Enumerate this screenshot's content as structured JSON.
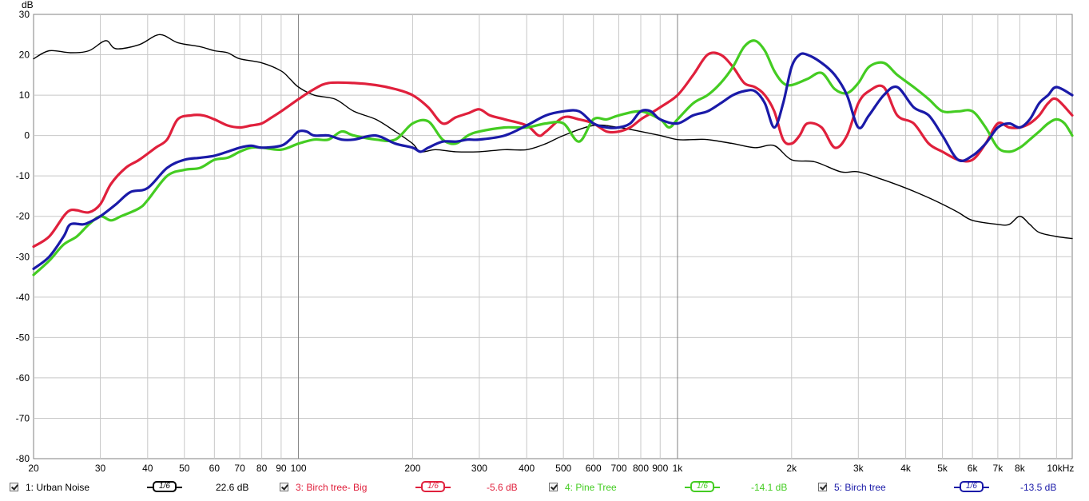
{
  "chart_data": {
    "type": "line",
    "title": "",
    "xlabel": "",
    "ylabel": "dB",
    "x_scale": "log",
    "xlim": [
      20,
      11000
    ],
    "ylim": [
      -80,
      30
    ],
    "yticks": [
      30,
      20,
      10,
      0,
      -10,
      -20,
      -30,
      -40,
      -50,
      -60,
      -70,
      -80
    ],
    "xticks": [
      {
        "v": 20,
        "t": "20"
      },
      {
        "v": 30,
        "t": "30"
      },
      {
        "v": 40,
        "t": "40"
      },
      {
        "v": 50,
        "t": "50"
      },
      {
        "v": 60,
        "t": "60"
      },
      {
        "v": 70,
        "t": "70"
      },
      {
        "v": 80,
        "t": "80"
      },
      {
        "v": 90,
        "t": "90"
      },
      {
        "v": 100,
        "t": "100"
      },
      {
        "v": 200,
        "t": "200"
      },
      {
        "v": 300,
        "t": "300"
      },
      {
        "v": 400,
        "t": "400"
      },
      {
        "v": 500,
        "t": "500"
      },
      {
        "v": 600,
        "t": "600"
      },
      {
        "v": 700,
        "t": "700"
      },
      {
        "v": 800,
        "t": "800"
      },
      {
        "v": 900,
        "t": "900"
      },
      {
        "v": 1000,
        "t": "1k"
      },
      {
        "v": 2000,
        "t": "2k"
      },
      {
        "v": 3000,
        "t": "3k"
      },
      {
        "v": 4000,
        "t": "4k"
      },
      {
        "v": 5000,
        "t": "5k"
      },
      {
        "v": 6000,
        "t": "6k"
      },
      {
        "v": 7000,
        "t": "7k"
      },
      {
        "v": 8000,
        "t": "8k"
      },
      {
        "v": 10000,
        "t": "10kHz"
      }
    ],
    "grid": true,
    "legend_position": "bottom",
    "series": [
      {
        "name": "1: Urban Noise",
        "color": "#000000",
        "smoothing": "1/6",
        "level": "22.6 dB",
        "points": [
          [
            20,
            19
          ],
          [
            22,
            21
          ],
          [
            25,
            20.5
          ],
          [
            28,
            21
          ],
          [
            31,
            23.5
          ],
          [
            33,
            21.5
          ],
          [
            38,
            22.5
          ],
          [
            43,
            25
          ],
          [
            48,
            23
          ],
          [
            55,
            22
          ],
          [
            60,
            21
          ],
          [
            65,
            20.5
          ],
          [
            70,
            19
          ],
          [
            80,
            18
          ],
          [
            90,
            16
          ],
          [
            95,
            14
          ],
          [
            100,
            12
          ],
          [
            110,
            10
          ],
          [
            125,
            9
          ],
          [
            140,
            6
          ],
          [
            160,
            4
          ],
          [
            180,
            1
          ],
          [
            200,
            -2
          ],
          [
            210,
            -4
          ],
          [
            230,
            -3.5
          ],
          [
            260,
            -4
          ],
          [
            300,
            -4
          ],
          [
            350,
            -3.5
          ],
          [
            400,
            -3.5
          ],
          [
            450,
            -2
          ],
          [
            500,
            0
          ],
          [
            600,
            2.5
          ],
          [
            700,
            2
          ],
          [
            800,
            1
          ],
          [
            900,
            0
          ],
          [
            1000,
            -1
          ],
          [
            1100,
            -1
          ],
          [
            1200,
            -1
          ],
          [
            1400,
            -2
          ],
          [
            1600,
            -3
          ],
          [
            1800,
            -2.5
          ],
          [
            2000,
            -6
          ],
          [
            2300,
            -6.5
          ],
          [
            2700,
            -9
          ],
          [
            3000,
            -9
          ],
          [
            3500,
            -11
          ],
          [
            4000,
            -13
          ],
          [
            4500,
            -15
          ],
          [
            5000,
            -17
          ],
          [
            5500,
            -19
          ],
          [
            6000,
            -21
          ],
          [
            7000,
            -22
          ],
          [
            7500,
            -22
          ],
          [
            8000,
            -20
          ],
          [
            8500,
            -22
          ],
          [
            9000,
            -24
          ],
          [
            10000,
            -25
          ],
          [
            11000,
            -25.5
          ]
        ]
      },
      {
        "name": "3: Birch tree- Big",
        "color": "#e0203c",
        "smoothing": "1/6",
        "level": "-5.6 dB",
        "points": [
          [
            20,
            -27.5
          ],
          [
            22,
            -25
          ],
          [
            24,
            -20
          ],
          [
            25,
            -18.5
          ],
          [
            26,
            -18.5
          ],
          [
            28,
            -19
          ],
          [
            30,
            -17
          ],
          [
            32,
            -12
          ],
          [
            35,
            -8
          ],
          [
            38,
            -6
          ],
          [
            42,
            -3
          ],
          [
            45,
            -1
          ],
          [
            48,
            4
          ],
          [
            52,
            5
          ],
          [
            56,
            5
          ],
          [
            60,
            4
          ],
          [
            65,
            2.5
          ],
          [
            70,
            2
          ],
          [
            75,
            2.5
          ],
          [
            80,
            3
          ],
          [
            85,
            4.5
          ],
          [
            90,
            6
          ],
          [
            100,
            9
          ],
          [
            110,
            11.5
          ],
          [
            120,
            13
          ],
          [
            140,
            13
          ],
          [
            160,
            12.5
          ],
          [
            180,
            11.5
          ],
          [
            200,
            10
          ],
          [
            220,
            7
          ],
          [
            240,
            3
          ],
          [
            260,
            4.5
          ],
          [
            280,
            5.5
          ],
          [
            300,
            6.5
          ],
          [
            320,
            5
          ],
          [
            350,
            4
          ],
          [
            400,
            2.5
          ],
          [
            430,
            0
          ],
          [
            450,
            1
          ],
          [
            500,
            4.5
          ],
          [
            550,
            4
          ],
          [
            600,
            3
          ],
          [
            650,
            1
          ],
          [
            700,
            1
          ],
          [
            750,
            2
          ],
          [
            800,
            4
          ],
          [
            850,
            5.5
          ],
          [
            900,
            7
          ],
          [
            1000,
            10
          ],
          [
            1100,
            15
          ],
          [
            1200,
            20
          ],
          [
            1300,
            20
          ],
          [
            1400,
            17
          ],
          [
            1500,
            13
          ],
          [
            1600,
            12
          ],
          [
            1700,
            10
          ],
          [
            1800,
            6
          ],
          [
            1900,
            -1
          ],
          [
            2000,
            -2
          ],
          [
            2100,
            0
          ],
          [
            2200,
            3
          ],
          [
            2400,
            2
          ],
          [
            2600,
            -3
          ],
          [
            2800,
            0
          ],
          [
            3000,
            8
          ],
          [
            3200,
            11
          ],
          [
            3500,
            12
          ],
          [
            3800,
            5
          ],
          [
            4200,
            3
          ],
          [
            4600,
            -2
          ],
          [
            5000,
            -4
          ],
          [
            5500,
            -6
          ],
          [
            6000,
            -6
          ],
          [
            6500,
            -2
          ],
          [
            7000,
            3
          ],
          [
            7500,
            2
          ],
          [
            8000,
            2
          ],
          [
            8500,
            3
          ],
          [
            9000,
            5
          ],
          [
            9500,
            8
          ],
          [
            10000,
            9
          ],
          [
            11000,
            5
          ]
        ]
      },
      {
        "name": "4: Pine Tree",
        "color": "#44cc22",
        "smoothing": "1/6",
        "level": "-14.1 dB",
        "points": [
          [
            20,
            -34.5
          ],
          [
            22,
            -31
          ],
          [
            24,
            -27
          ],
          [
            26,
            -25
          ],
          [
            28,
            -22
          ],
          [
            30,
            -20
          ],
          [
            32,
            -21
          ],
          [
            34,
            -20
          ],
          [
            38,
            -18
          ],
          [
            40,
            -16
          ],
          [
            45,
            -10
          ],
          [
            50,
            -8.5
          ],
          [
            55,
            -8
          ],
          [
            60,
            -6
          ],
          [
            65,
            -5.5
          ],
          [
            70,
            -4
          ],
          [
            75,
            -3
          ],
          [
            80,
            -3
          ],
          [
            90,
            -3.5
          ],
          [
            100,
            -2
          ],
          [
            110,
            -1
          ],
          [
            120,
            -1
          ],
          [
            130,
            1
          ],
          [
            140,
            0
          ],
          [
            160,
            -1
          ],
          [
            180,
            -1
          ],
          [
            200,
            3
          ],
          [
            220,
            3.5
          ],
          [
            240,
            -1
          ],
          [
            260,
            -2
          ],
          [
            280,
            0
          ],
          [
            300,
            1
          ],
          [
            350,
            2
          ],
          [
            400,
            2
          ],
          [
            450,
            3
          ],
          [
            500,
            3
          ],
          [
            550,
            -1.5
          ],
          [
            600,
            4
          ],
          [
            650,
            4
          ],
          [
            700,
            5
          ],
          [
            800,
            6
          ],
          [
            900,
            4
          ],
          [
            950,
            2
          ],
          [
            1000,
            4
          ],
          [
            1100,
            8
          ],
          [
            1200,
            10
          ],
          [
            1300,
            13
          ],
          [
            1400,
            17
          ],
          [
            1500,
            22
          ],
          [
            1600,
            23.5
          ],
          [
            1700,
            21
          ],
          [
            1800,
            16
          ],
          [
            1900,
            13
          ],
          [
            2000,
            12.5
          ],
          [
            2200,
            14
          ],
          [
            2400,
            15.5
          ],
          [
            2600,
            11.5
          ],
          [
            2800,
            10.5
          ],
          [
            3000,
            13
          ],
          [
            3200,
            17
          ],
          [
            3500,
            18
          ],
          [
            3800,
            15
          ],
          [
            4200,
            12
          ],
          [
            4600,
            9
          ],
          [
            5000,
            6
          ],
          [
            5500,
            6
          ],
          [
            6000,
            6
          ],
          [
            6500,
            2
          ],
          [
            7000,
            -3
          ],
          [
            7500,
            -4
          ],
          [
            8000,
            -3
          ],
          [
            8500,
            -1
          ],
          [
            9000,
            1
          ],
          [
            9500,
            3
          ],
          [
            10000,
            4
          ],
          [
            10500,
            3
          ],
          [
            11000,
            0
          ]
        ]
      },
      {
        "name": "5: Birch tree",
        "color": "#1a1aa8",
        "smoothing": "1/6",
        "level": "-13.5 dB",
        "points": [
          [
            20,
            -33
          ],
          [
            22,
            -30
          ],
          [
            24,
            -25
          ],
          [
            25,
            -22
          ],
          [
            27,
            -22
          ],
          [
            28,
            -21.5
          ],
          [
            30,
            -20
          ],
          [
            33,
            -17
          ],
          [
            36,
            -14
          ],
          [
            40,
            -13
          ],
          [
            45,
            -8
          ],
          [
            50,
            -6
          ],
          [
            55,
            -5.5
          ],
          [
            60,
            -5
          ],
          [
            65,
            -4
          ],
          [
            70,
            -3
          ],
          [
            75,
            -2.5
          ],
          [
            80,
            -3
          ],
          [
            90,
            -2.5
          ],
          [
            95,
            -1
          ],
          [
            100,
            1
          ],
          [
            105,
            1
          ],
          [
            110,
            0
          ],
          [
            120,
            0
          ],
          [
            130,
            -1
          ],
          [
            140,
            -1
          ],
          [
            160,
            0
          ],
          [
            180,
            -2
          ],
          [
            200,
            -3
          ],
          [
            210,
            -4
          ],
          [
            220,
            -3
          ],
          [
            240,
            -1.5
          ],
          [
            260,
            -1.5
          ],
          [
            280,
            -1
          ],
          [
            300,
            -1
          ],
          [
            350,
            0
          ],
          [
            400,
            2.5
          ],
          [
            450,
            5
          ],
          [
            500,
            6
          ],
          [
            550,
            6
          ],
          [
            600,
            3
          ],
          [
            650,
            2
          ],
          [
            700,
            2
          ],
          [
            750,
            3
          ],
          [
            800,
            6
          ],
          [
            850,
            6
          ],
          [
            900,
            4
          ],
          [
            1000,
            3
          ],
          [
            1100,
            5
          ],
          [
            1200,
            6
          ],
          [
            1300,
            8
          ],
          [
            1400,
            10
          ],
          [
            1500,
            11
          ],
          [
            1600,
            11
          ],
          [
            1700,
            8
          ],
          [
            1800,
            2
          ],
          [
            1900,
            8
          ],
          [
            2000,
            17
          ],
          [
            2100,
            20
          ],
          [
            2200,
            20
          ],
          [
            2400,
            18
          ],
          [
            2600,
            15
          ],
          [
            2800,
            10
          ],
          [
            3000,
            2
          ],
          [
            3200,
            5
          ],
          [
            3500,
            10
          ],
          [
            3800,
            12
          ],
          [
            4200,
            7
          ],
          [
            4600,
            5
          ],
          [
            5000,
            0
          ],
          [
            5500,
            -6
          ],
          [
            6000,
            -5
          ],
          [
            6500,
            -2
          ],
          [
            7000,
            2
          ],
          [
            7500,
            3
          ],
          [
            8000,
            2
          ],
          [
            8500,
            4
          ],
          [
            9000,
            8
          ],
          [
            9500,
            10
          ],
          [
            10000,
            12
          ],
          [
            11000,
            10
          ]
        ]
      }
    ]
  }
}
